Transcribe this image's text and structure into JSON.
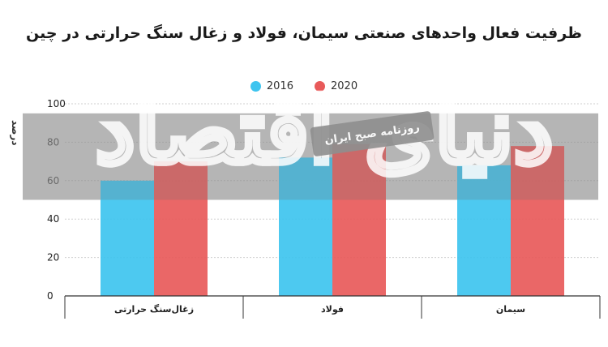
{
  "chart_data": {
    "type": "bar",
    "title": "ظرفیت فعال واحدهای صنعتی سیمان، فولاد و زغال سنگ حرارتی در چین",
    "ylabel": "درصد",
    "xlabel": "",
    "ylim": [
      0,
      100
    ],
    "yticks": [
      0,
      20,
      40,
      60,
      80,
      100
    ],
    "categories": [
      "زغال‌سنگ حرارتی",
      "فولاد",
      "سیمان"
    ],
    "series": [
      {
        "name": "2016",
        "color": "#3ec4ef",
        "values": [
          60,
          72,
          68
        ]
      },
      {
        "name": "2020",
        "color": "#e85a5a",
        "values": [
          70,
          79,
          78
        ]
      }
    ],
    "legend_position": "top-center",
    "grid": true,
    "highlight_band": [
      50,
      95
    ]
  },
  "watermark": {
    "pill_text": "روزنامه صبح ایران",
    "logo_text": "دنیای اقتصاد"
  }
}
